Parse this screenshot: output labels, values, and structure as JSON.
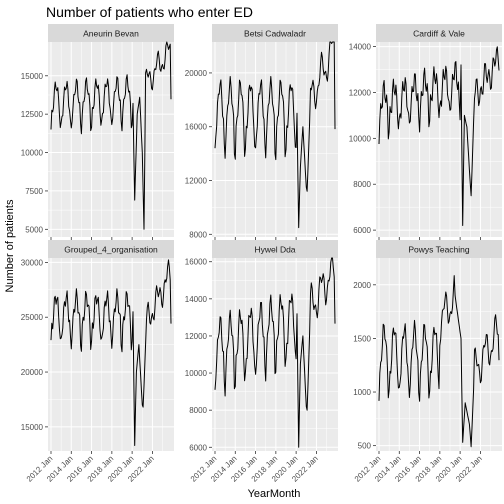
{
  "chart_data": {
    "type": "line",
    "facet": "small-multiples, free y scales, 2 rows x 3 columns",
    "title": "Number of patients who enter ED",
    "xlabel": "YearMonth",
    "ylabel": "Number of patients",
    "x_range": [
      "2012-01",
      "2023-11"
    ],
    "x_ticks": [
      "2012 Jan",
      "2014 Jan",
      "2016 Jan",
      "2018 Jan",
      "2020 Jan",
      "2022 Jan"
    ],
    "grid": true,
    "colors": {
      "panel_bg": "#ebebeb",
      "strip_bg": "#d9d9d9",
      "grid": "#ffffff",
      "line": "#000000",
      "text": "#4d4d4d"
    },
    "panels": [
      {
        "name": "Aneurin Bevan",
        "ylim": [
          4500,
          17200
        ],
        "y_ticks": [
          5000,
          7500,
          10000,
          12500,
          15000
        ],
        "y_tick_labels": [
          "5000",
          "7500",
          "10000",
          "12500",
          "15000"
        ],
        "base": 13300,
        "amp": 1100,
        "winter_dip": 700,
        "trend": 45,
        "noise": 450,
        "anchors": [
          [
            "2020-02",
            13200
          ],
          [
            "2020-04",
            6900
          ],
          [
            "2020-07",
            12500
          ],
          [
            "2020-10",
            13600
          ],
          [
            "2021-01",
            10000
          ],
          [
            "2021-03",
            5000
          ],
          [
            "2021-05",
            14500
          ],
          [
            "2023-10",
            16700
          ]
        ]
      },
      {
        "name": "Betsi Cadwaladr",
        "ylim": [
          7800,
          22300
        ],
        "y_ticks": [
          8000,
          12000,
          16000,
          20000
        ],
        "y_tick_labels": [
          "8000",
          "12000",
          "16000",
          "20000"
        ],
        "base": 17300,
        "amp": 1900,
        "winter_dip": 1400,
        "trend": 0,
        "noise": 600,
        "anchors": [
          [
            "2020-02",
            17000
          ],
          [
            "2020-04",
            8500
          ],
          [
            "2020-06",
            13000
          ],
          [
            "2020-09",
            16000
          ],
          [
            "2021-01",
            11500
          ],
          [
            "2021-02",
            11200
          ],
          [
            "2021-06",
            18000
          ],
          [
            "2023-10",
            22000
          ]
        ]
      },
      {
        "name": "Cardiff & Vale",
        "ylim": [
          5700,
          14200
        ],
        "y_ticks": [
          6000,
          8000,
          10000,
          12000,
          14000
        ],
        "y_tick_labels": [
          "6000",
          "8000",
          "10000",
          "12000",
          "14000"
        ],
        "base": 11400,
        "amp": 700,
        "winter_dip": 500,
        "trend": 130,
        "noise": 500,
        "anchors": [
          [
            "2020-02",
            13200
          ],
          [
            "2020-04",
            6200
          ],
          [
            "2020-06",
            11000
          ],
          [
            "2020-09",
            10500
          ],
          [
            "2021-01",
            8000
          ],
          [
            "2021-02",
            7500
          ],
          [
            "2021-06",
            11800
          ],
          [
            "2023-10",
            13400
          ]
        ]
      },
      {
        "name": "Grouped_4_organisation",
        "ylim": [
          12800,
          30400
        ],
        "y_ticks": [
          15000,
          20000,
          25000,
          30000
        ],
        "y_tick_labels": [
          "15000",
          "20000",
          "25000",
          "30000"
        ],
        "base": 25300,
        "amp": 1600,
        "winter_dip": 1200,
        "trend": 0,
        "noise": 800,
        "anchors": [
          [
            "2020-02",
            25500
          ],
          [
            "2020-04",
            13300
          ],
          [
            "2020-06",
            20000
          ],
          [
            "2020-09",
            22500
          ],
          [
            "2021-01",
            17000
          ],
          [
            "2021-02",
            16800
          ],
          [
            "2021-06",
            24500
          ],
          [
            "2023-10",
            29000
          ]
        ]
      },
      {
        "name": "Hywel Dda",
        "ylim": [
          5800,
          16200
        ],
        "y_ticks": [
          6000,
          8000,
          10000,
          12000,
          14000,
          16000
        ],
        "y_tick_labels": [
          "6000",
          "8000",
          "10000",
          "12000",
          "14000",
          "16000"
        ],
        "base": 11300,
        "amp": 1400,
        "winter_dip": 900,
        "trend": 200,
        "noise": 500,
        "anchors": [
          [
            "2020-02",
            13200
          ],
          [
            "2020-04",
            6000
          ],
          [
            "2020-06",
            10500
          ],
          [
            "2020-09",
            12000
          ],
          [
            "2021-01",
            8200
          ],
          [
            "2021-02",
            8000
          ],
          [
            "2021-06",
            13500
          ],
          [
            "2023-10",
            15600
          ]
        ]
      },
      {
        "name": "Powys Teaching",
        "ylim": [
          450,
          2250
        ],
        "y_ticks": [
          500,
          1000,
          1500,
          2000
        ],
        "y_tick_labels": [
          "500",
          "1000",
          "1500",
          "2000"
        ],
        "base": 1350,
        "amp": 250,
        "winter_dip": 120,
        "trend": 0,
        "noise": 80,
        "anchors": [
          [
            "2018-01",
            1650
          ],
          [
            "2019-07",
            1900
          ],
          [
            "2020-02",
            1500
          ],
          [
            "2020-04",
            530
          ],
          [
            "2020-07",
            900
          ],
          [
            "2020-12",
            700
          ],
          [
            "2021-02",
            490
          ],
          [
            "2021-06",
            1200
          ],
          [
            "2023-10",
            1550
          ]
        ]
      }
    ]
  }
}
